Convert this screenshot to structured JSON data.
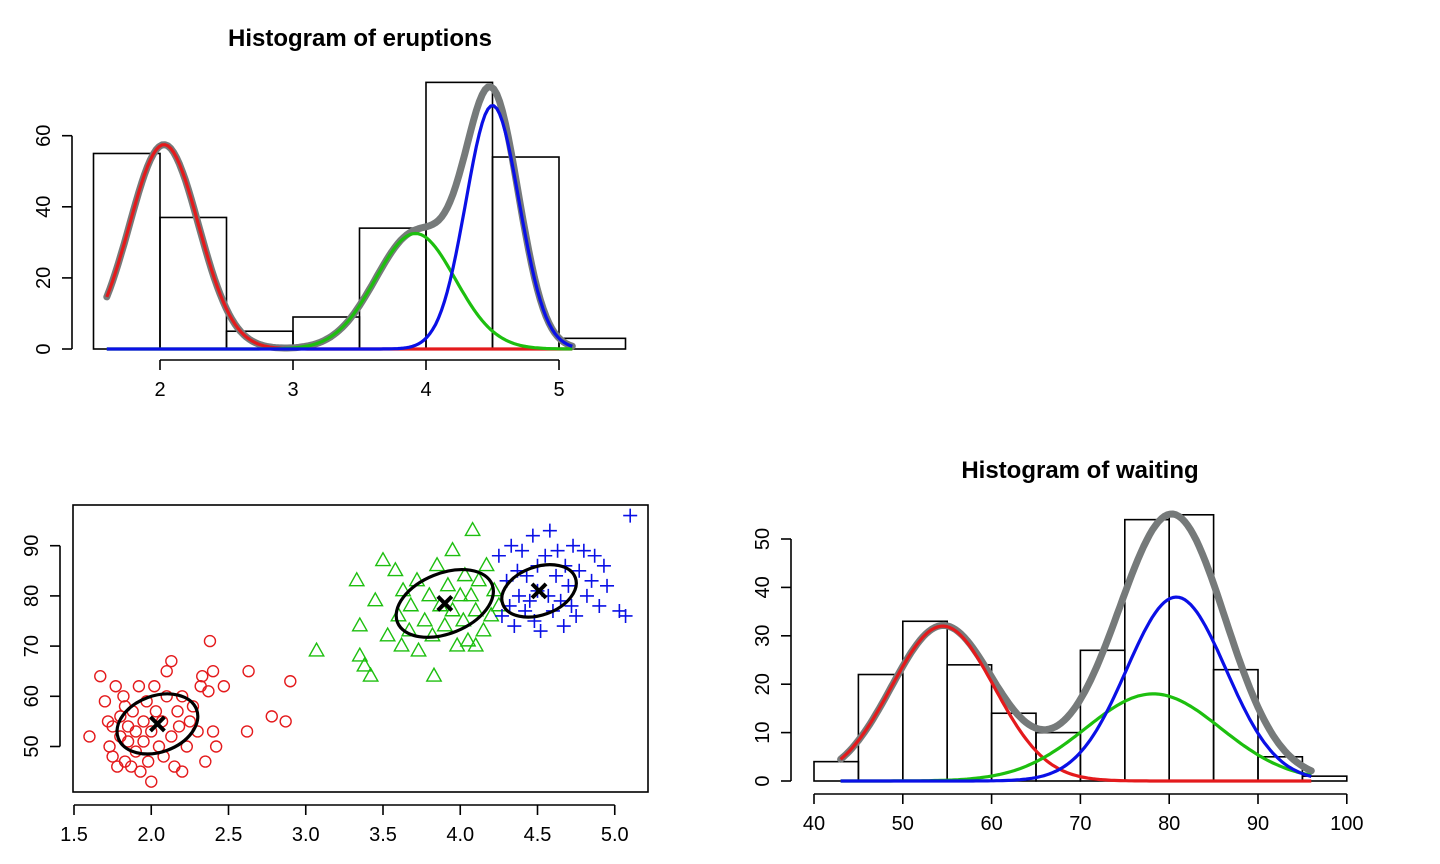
{
  "chart_data": [
    {
      "type": "histogram",
      "title": "Histogram of eruptions",
      "xlabel": "",
      "ylabel": "",
      "xlim": [
        1.5,
        5.5
      ],
      "ylim": [
        0,
        75
      ],
      "x_ticks": [
        2,
        3,
        4,
        5
      ],
      "y_ticks": [
        0,
        20,
        40,
        60
      ],
      "bins": [
        {
          "from": 1.5,
          "to": 2.0,
          "count": 55
        },
        {
          "from": 2.0,
          "to": 2.5,
          "count": 37
        },
        {
          "from": 2.5,
          "to": 3.0,
          "count": 5
        },
        {
          "from": 3.0,
          "to": 3.5,
          "count": 9
        },
        {
          "from": 3.5,
          "to": 4.0,
          "count": 34
        },
        {
          "from": 4.0,
          "to": 4.5,
          "count": 75
        },
        {
          "from": 4.5,
          "to": 5.0,
          "count": 54
        },
        {
          "from": 5.0,
          "to": 5.5,
          "count": 3
        }
      ],
      "curve_range": [
        1.6,
        5.1
      ],
      "components": [
        {
          "color": "#e41a1c",
          "mean": 2.03,
          "sd": 0.26,
          "peak": 57.5
        },
        {
          "color": "#1dbf0f",
          "mean": 3.92,
          "sd": 0.3,
          "peak": 32.5
        },
        {
          "color": "#0a10e6",
          "mean": 4.5,
          "sd": 0.2,
          "peak": 68.5
        }
      ],
      "mixture_color": "#767a7a",
      "grid": false
    },
    {
      "type": "scatter",
      "title": "",
      "xlabel": "",
      "ylabel": "",
      "xlim": [
        1.5,
        5.2
      ],
      "ylim": [
        41,
        97.5
      ],
      "x_ticks": [
        "1.5",
        "2.0",
        "2.5",
        "3.0",
        "3.5",
        "4.0",
        "4.5",
        "5.0"
      ],
      "y_ticks": [
        50,
        60,
        70,
        80,
        90
      ],
      "clusters": [
        {
          "color": "#e41a1c",
          "marker": "circle",
          "center": [
            2.04,
            54.5
          ],
          "points": [
            [
              1.6,
              52
            ],
            [
              1.67,
              64
            ],
            [
              1.7,
              59
            ],
            [
              1.72,
              55
            ],
            [
              1.73,
              50
            ],
            [
              1.75,
              54
            ],
            [
              1.75,
              48
            ],
            [
              1.77,
              62
            ],
            [
              1.78,
              46
            ],
            [
              1.8,
              56
            ],
            [
              1.8,
              52
            ],
            [
              1.82,
              60
            ],
            [
              1.83,
              47
            ],
            [
              1.83,
              58
            ],
            [
              1.85,
              54
            ],
            [
              1.85,
              51
            ],
            [
              1.87,
              46
            ],
            [
              1.88,
              57
            ],
            [
              1.9,
              53
            ],
            [
              1.9,
              49
            ],
            [
              1.92,
              62
            ],
            [
              1.93,
              45
            ],
            [
              1.95,
              55
            ],
            [
              1.95,
              51
            ],
            [
              1.97,
              59
            ],
            [
              1.98,
              47
            ],
            [
              2.0,
              53
            ],
            [
              2.0,
              43
            ],
            [
              2.02,
              62
            ],
            [
              2.03,
              57
            ],
            [
              2.05,
              50
            ],
            [
              2.07,
              55
            ],
            [
              2.08,
              48
            ],
            [
              2.1,
              60
            ],
            [
              2.1,
              65
            ],
            [
              2.13,
              52
            ],
            [
              2.13,
              67
            ],
            [
              2.15,
              46
            ],
            [
              2.17,
              57
            ],
            [
              2.18,
              54
            ],
            [
              2.2,
              45
            ],
            [
              2.2,
              60
            ],
            [
              2.23,
              50
            ],
            [
              2.25,
              55
            ],
            [
              2.27,
              58
            ],
            [
              2.3,
              53
            ],
            [
              2.32,
              62
            ],
            [
              2.33,
              64
            ],
            [
              2.35,
              47
            ],
            [
              2.37,
              61
            ],
            [
              2.38,
              71
            ],
            [
              2.4,
              65
            ],
            [
              2.4,
              53
            ],
            [
              2.42,
              50
            ],
            [
              2.47,
              62
            ],
            [
              2.62,
              53
            ],
            [
              2.63,
              65
            ],
            [
              2.78,
              56
            ],
            [
              2.87,
              55
            ],
            [
              2.9,
              63
            ]
          ]
        },
        {
          "color": "#1dbf0f",
          "marker": "triangle",
          "center": [
            3.9,
            78.5
          ],
          "points": [
            [
              3.07,
              69
            ],
            [
              3.33,
              83
            ],
            [
              3.35,
              74
            ],
            [
              3.35,
              68
            ],
            [
              3.38,
              66
            ],
            [
              3.42,
              64
            ],
            [
              3.45,
              79
            ],
            [
              3.5,
              87
            ],
            [
              3.53,
              72
            ],
            [
              3.58,
              85
            ],
            [
              3.6,
              76
            ],
            [
              3.62,
              70
            ],
            [
              3.63,
              81
            ],
            [
              3.67,
              73
            ],
            [
              3.68,
              78
            ],
            [
              3.72,
              83
            ],
            [
              3.73,
              69
            ],
            [
              3.77,
              75
            ],
            [
              3.8,
              80
            ],
            [
              3.82,
              72
            ],
            [
              3.83,
              64
            ],
            [
              3.85,
              86
            ],
            [
              3.87,
              78
            ],
            [
              3.9,
              74
            ],
            [
              3.92,
              82
            ],
            [
              3.95,
              77
            ],
            [
              3.95,
              89
            ],
            [
              3.98,
              70
            ],
            [
              4.0,
              80
            ],
            [
              4.02,
              75
            ],
            [
              4.03,
              84
            ],
            [
              4.05,
              71
            ],
            [
              4.07,
              80
            ],
            [
              4.08,
              93
            ],
            [
              4.1,
              77
            ],
            [
              4.1,
              70
            ],
            [
              4.12,
              83
            ],
            [
              4.15,
              73
            ],
            [
              4.17,
              86
            ],
            [
              4.2,
              76
            ],
            [
              4.22,
              81
            ],
            [
              4.25,
              78
            ]
          ]
        },
        {
          "color": "#0a10e6",
          "marker": "plus",
          "center": [
            4.51,
            81
          ],
          "points": [
            [
              4.25,
              88
            ],
            [
              4.27,
              76
            ],
            [
              4.3,
              83
            ],
            [
              4.32,
              78
            ],
            [
              4.33,
              90
            ],
            [
              4.35,
              74
            ],
            [
              4.37,
              85
            ],
            [
              4.38,
              80
            ],
            [
              4.4,
              89
            ],
            [
              4.42,
              77
            ],
            [
              4.43,
              84
            ],
            [
              4.45,
              79
            ],
            [
              4.47,
              92
            ],
            [
              4.48,
              75
            ],
            [
              4.5,
              86
            ],
            [
              4.5,
              81
            ],
            [
              4.52,
              73
            ],
            [
              4.55,
              88
            ],
            [
              4.57,
              80
            ],
            [
              4.58,
              93
            ],
            [
              4.6,
              77
            ],
            [
              4.62,
              84
            ],
            [
              4.63,
              89
            ],
            [
              4.65,
              79
            ],
            [
              4.67,
              74
            ],
            [
              4.68,
              86
            ],
            [
              4.7,
              82
            ],
            [
              4.72,
              78
            ],
            [
              4.73,
              90
            ],
            [
              4.75,
              76
            ],
            [
              4.77,
              85
            ],
            [
              4.8,
              89
            ],
            [
              4.82,
              80
            ],
            [
              4.85,
              83
            ],
            [
              4.87,
              88
            ],
            [
              4.9,
              78
            ],
            [
              4.93,
              86
            ],
            [
              4.95,
              82
            ],
            [
              5.03,
              77
            ],
            [
              5.07,
              76
            ],
            [
              5.1,
              96
            ]
          ]
        }
      ],
      "ellipses": [
        {
          "cx": 2.04,
          "cy": 54.5,
          "rx_units": 0.27,
          "ry_units": 5.6,
          "angle_deg": -20
        },
        {
          "cx": 3.9,
          "cy": 78.5,
          "rx_units": 0.33,
          "ry_units": 6.0,
          "angle_deg": -22
        },
        {
          "cx": 4.51,
          "cy": 81,
          "rx_units": 0.25,
          "ry_units": 4.8,
          "angle_deg": -20
        }
      ],
      "center_marker": "x",
      "grid": false
    },
    {
      "type": "histogram",
      "title": "Histogram of waiting",
      "xlabel": "",
      "ylabel": "",
      "xlim": [
        40,
        100
      ],
      "ylim": [
        0,
        55
      ],
      "x_ticks": [
        40,
        50,
        60,
        70,
        80,
        90,
        100
      ],
      "y_ticks": [
        0,
        10,
        20,
        30,
        40,
        50
      ],
      "bins": [
        {
          "from": 40,
          "to": 45,
          "count": 4
        },
        {
          "from": 45,
          "to": 50,
          "count": 22
        },
        {
          "from": 50,
          "to": 55,
          "count": 33
        },
        {
          "from": 55,
          "to": 60,
          "count": 24
        },
        {
          "from": 60,
          "to": 65,
          "count": 14
        },
        {
          "from": 65,
          "to": 70,
          "count": 10
        },
        {
          "from": 70,
          "to": 75,
          "count": 27
        },
        {
          "from": 75,
          "to": 80,
          "count": 54
        },
        {
          "from": 80,
          "to": 85,
          "count": 55
        },
        {
          "from": 85,
          "to": 90,
          "count": 23
        },
        {
          "from": 90,
          "to": 95,
          "count": 5
        },
        {
          "from": 95,
          "to": 100,
          "count": 1
        }
      ],
      "curve_range": [
        43,
        96
      ],
      "components": [
        {
          "color": "#e41a1c",
          "mean": 54.5,
          "sd": 5.8,
          "peak": 32
        },
        {
          "color": "#1dbf0f",
          "mean": 78.2,
          "sd": 7.6,
          "peak": 18
        },
        {
          "color": "#0a10e6",
          "mean": 80.8,
          "sd": 5.6,
          "peak": 38
        }
      ],
      "mixture_color": "#767a7a",
      "grid": false
    }
  ]
}
